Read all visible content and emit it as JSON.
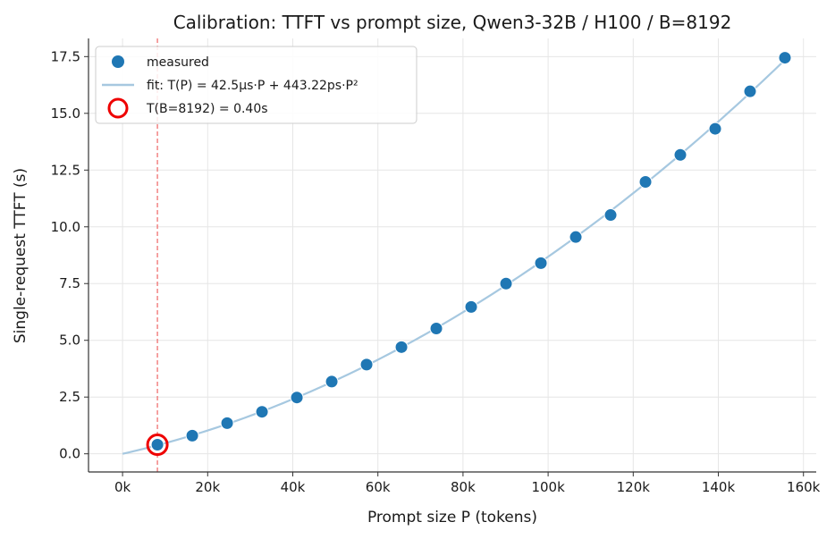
{
  "chart_data": {
    "type": "scatter",
    "title": "Calibration: TTFT vs prompt size, Qwen3-32B / H100 / B=8192",
    "xlabel": "Prompt size P (tokens)",
    "ylabel": "Single-request TTFT (s)",
    "xlim": [
      -8000,
      163000
    ],
    "ylim": [
      -0.8,
      18.3
    ],
    "xticks": [
      0,
      20000,
      40000,
      60000,
      80000,
      100000,
      120000,
      140000,
      160000
    ],
    "xtick_labels": [
      "0k",
      "20k",
      "40k",
      "60k",
      "80k",
      "100k",
      "120k",
      "140k",
      "160k"
    ],
    "yticks": [
      0.0,
      2.5,
      5.0,
      7.5,
      10.0,
      12.5,
      15.0,
      17.5
    ],
    "ytick_labels": [
      "0.0",
      "2.5",
      "5.0",
      "7.5",
      "10.0",
      "12.5",
      "15.0",
      "17.5"
    ],
    "grid": true,
    "legend_position": "top-left",
    "series": [
      {
        "name": "measured",
        "kind": "scatter",
        "color": "#1f77b4",
        "x": [
          8192,
          16384,
          24576,
          32768,
          40960,
          49152,
          57344,
          65536,
          73728,
          81920,
          90112,
          98304,
          106496,
          114688,
          122880,
          131072,
          139264,
          147456,
          155648
        ],
        "y": [
          0.4,
          0.8,
          1.35,
          1.85,
          2.48,
          3.18,
          3.93,
          4.7,
          5.52,
          6.47,
          7.5,
          8.4,
          9.55,
          10.52,
          11.98,
          13.17,
          14.32,
          15.97,
          17.45
        ]
      },
      {
        "name": "fit: T(P) = 42.5μs·P + 443.22ps·P²",
        "kind": "line",
        "color": "#a6c8e0",
        "a": 4.25e-05,
        "b": 4.4322e-10,
        "x_range": [
          0,
          155648
        ]
      },
      {
        "name": "T(B=8192) = 0.40s",
        "kind": "highlight",
        "color": "#ee0000",
        "x": 8192,
        "y": 0.4
      }
    ],
    "vline": {
      "x": 8192,
      "color": "#f07070",
      "style": "dashed"
    }
  }
}
